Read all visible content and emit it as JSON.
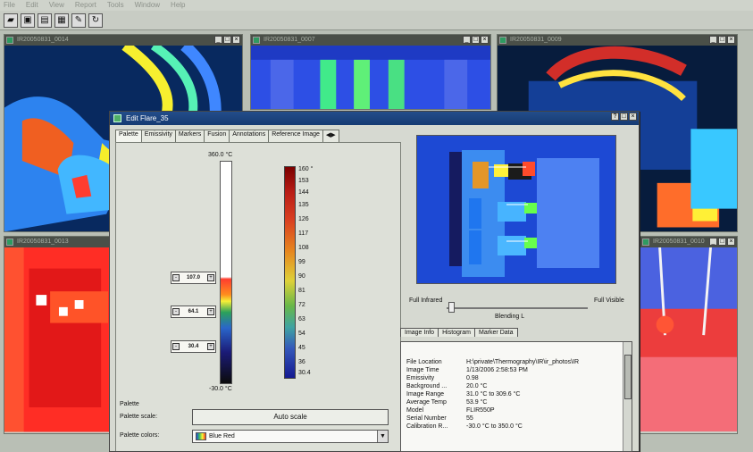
{
  "menu": [
    "File",
    "Edit",
    "View",
    "Report",
    "Tools",
    "Window",
    "Help"
  ],
  "toolbar": {
    "icons": [
      "folder-icon",
      "save-icon",
      "open-icon",
      "palette-icon",
      "edit-icon",
      "refresh-icon"
    ]
  },
  "windows": [
    {
      "title": "IR20050831_0014"
    },
    {
      "title": "IR20050831_0007"
    },
    {
      "title": "IR20050831_0009"
    },
    {
      "title": "IR20050831_0013"
    },
    {
      "title": "IR20050831_0010"
    }
  ],
  "dialog": {
    "title": "Edit Flare_35",
    "tabs": [
      "Palette",
      "Emissivity",
      "Markers",
      "Fusion",
      "Annotations",
      "Reference Image"
    ],
    "scale_top": "360.0 °C",
    "scale_bottom": "-30.0 °C",
    "colorbar_ticks": [
      "160 °",
      "153",
      "144",
      "135",
      "126",
      "117",
      "108",
      "99",
      "90",
      "81",
      "72",
      "63",
      "54",
      "45",
      "36",
      "30.4"
    ],
    "controls": [
      "107.0",
      "64.1",
      "30.4"
    ],
    "palette_heading": "Palette",
    "palette_scale_label": "Palette scale:",
    "palette_colors_label": "Palette colors:",
    "auto_scale": "Auto scale",
    "palette_value": "Blue Red"
  },
  "preview": {
    "left_label": "Full Infrared",
    "right_label": "Full Visible",
    "blend_label": "Blending L",
    "tabs": [
      "Image Info",
      "Histogram",
      "Marker Data"
    ],
    "info": [
      [
        "File Location",
        "H:\\private\\Thermography\\IR\\ir_photos\\IR"
      ],
      [
        "Image Time",
        "1/13/2006 2:58:53 PM"
      ],
      [
        "Emissivity",
        "0.98"
      ],
      [
        "Background ...",
        "20.0 °C"
      ],
      [
        "Image Range",
        "31.0 °C to 309.6 °C"
      ],
      [
        "Average Temp",
        "53.9 °C"
      ],
      [
        "Model",
        "FLIR550P"
      ],
      [
        "Serial Number",
        "55"
      ],
      [
        "Calibration R...",
        "-30.0 °C to 350.0 °C"
      ]
    ]
  },
  "colors": {
    "accent": "#234d8a",
    "hot": "#ff3d2f",
    "cold": "#1d49d4"
  }
}
